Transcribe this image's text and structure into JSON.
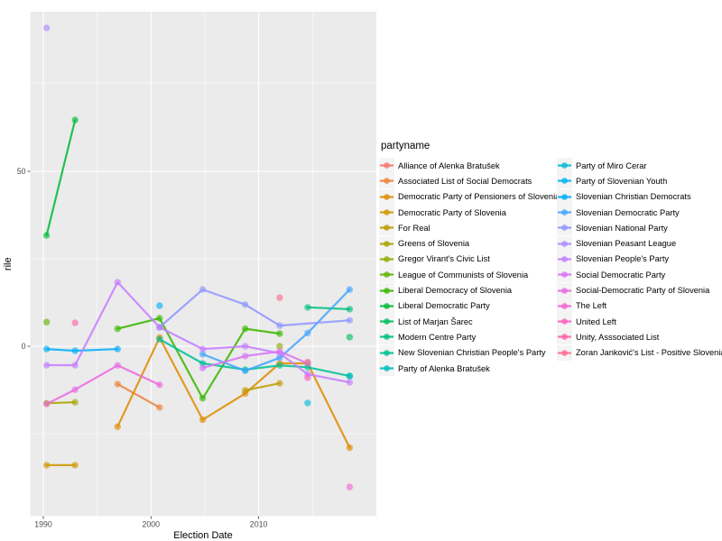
{
  "legend": {
    "title": "partyname"
  },
  "axes": {
    "x_title": "Election Date",
    "y_title": "rile",
    "x_tick_labels": [
      "1990",
      "2000",
      "2010"
    ],
    "y_tick_labels": [
      "0",
      "50"
    ]
  },
  "chart_data": {
    "type": "line",
    "title": "",
    "xlabel": "Election Date",
    "ylabel": "rile",
    "x_tick_labels": [
      "1990",
      "2000",
      "2010"
    ],
    "y_tick_labels": [
      "0",
      "50"
    ],
    "xlim": [
      1988.8,
      2020.9
    ],
    "ylim": [
      -48,
      95
    ],
    "grid": true,
    "legend_position": "right",
    "legend_title": "partyname",
    "panel_background": "#EBEBEB",
    "gridline_color": "#FFFFFF",
    "year_x_positions": {
      "1990": 1990.3,
      "1992": 1992.95,
      "1996": 1996.9,
      "2000": 2000.8,
      "2004": 2004.8,
      "2008": 2008.75,
      "2011": 2011.95,
      "2014": 2014.55,
      "2018": 2018.45
    },
    "series": [
      {
        "name": "Alliance of Alenka Bratušek",
        "color": "#F8766D",
        "points": [
          [
            2014,
            -4.5
          ]
        ]
      },
      {
        "name": "Associated List of Social Democrats",
        "color": "#EC8239",
        "points": [
          [
            1996,
            -10.8
          ],
          [
            2000,
            -17.5
          ]
        ]
      },
      {
        "name": "Democratic Party of Pensioners of Slovenia",
        "color": "#DE8C00",
        "points": [
          [
            1996,
            -23.0
          ],
          [
            2000,
            2.5
          ],
          [
            2004,
            -21.0
          ],
          [
            2008,
            -13.5
          ],
          [
            2011,
            -4.9
          ],
          [
            2014,
            -4.9
          ],
          [
            2018,
            -29.0
          ]
        ]
      },
      {
        "name": "Democratic Party of Slovenia",
        "color": "#D09400",
        "points": [
          [
            1990,
            -34.0
          ],
          [
            1992,
            -34.0
          ]
        ]
      },
      {
        "name": "For Real",
        "color": "#BE9C00",
        "points": [
          [
            2008,
            -12.6
          ],
          [
            2011,
            -10.6
          ]
        ]
      },
      {
        "name": "Greens of Slovenia",
        "color": "#A7A400",
        "points": [
          [
            1990,
            -16.3
          ],
          [
            1992,
            -16.0
          ]
        ]
      },
      {
        "name": "Gregor Virant's Civic List",
        "color": "#8CAD00",
        "points": [
          [
            2011,
            0.0
          ]
        ]
      },
      {
        "name": "League of Communists of Slovenia",
        "color": "#64B200",
        "points": [
          [
            1990,
            6.9
          ]
        ]
      },
      {
        "name": "Liberal Democracy of Slovenia",
        "color": "#39B600",
        "points": [
          [
            1996,
            5.0
          ],
          [
            2000,
            8.0
          ],
          [
            2004,
            -14.9
          ],
          [
            2008,
            5.0
          ],
          [
            2011,
            3.6
          ]
        ]
      },
      {
        "name": "Liberal Democratic Party",
        "color": "#00BA38",
        "points": [
          [
            1990,
            31.7
          ],
          [
            1992,
            64.7
          ]
        ]
      },
      {
        "name": "List of Marjan Šarec",
        "color": "#00BC5C",
        "points": [
          [
            2018,
            2.6
          ]
        ]
      },
      {
        "name": "Modern Centre Party",
        "color": "#00BF7C",
        "points": [
          [
            2014,
            11.1
          ],
          [
            2018,
            10.6
          ]
        ]
      },
      {
        "name": "New Slovenian Christian People's Party",
        "color": "#00C098",
        "points": [
          [
            2000,
            2.0
          ],
          [
            2004,
            -4.9
          ],
          [
            2008,
            -6.7
          ],
          [
            2011,
            -5.5
          ],
          [
            2014,
            -6.0
          ],
          [
            2018,
            -8.5
          ]
        ]
      },
      {
        "name": "Party of Alenka Bratušek",
        "color": "#00BFC0",
        "points": [
          [
            2018,
            -8.5
          ]
        ]
      },
      {
        "name": "Party of Miro Cerar",
        "color": "#00BBDA",
        "points": [
          [
            2014,
            -16.2
          ]
        ]
      },
      {
        "name": "Party of Slovenian Youth",
        "color": "#00B3F0",
        "points": [
          [
            2000,
            11.6
          ]
        ]
      },
      {
        "name": "Slovenian Christian Democrats",
        "color": "#00AEF8",
        "points": [
          [
            1990,
            -0.8
          ],
          [
            1992,
            -1.3
          ],
          [
            1996,
            -0.8
          ]
        ]
      },
      {
        "name": "Slovenian Democratic Party",
        "color": "#42A4FF",
        "points": [
          [
            2004,
            -2.3
          ],
          [
            2008,
            -7.0
          ],
          [
            2011,
            -3.3
          ],
          [
            2014,
            3.8
          ],
          [
            2018,
            16.2
          ]
        ]
      },
      {
        "name": "Slovenian National Party",
        "color": "#8F95FF",
        "points": [
          [
            2000,
            5.4
          ],
          [
            2004,
            16.2
          ],
          [
            2008,
            11.9
          ],
          [
            2011,
            5.9
          ],
          [
            2018,
            7.4
          ]
        ]
      },
      {
        "name": "Slovenian Peasant League",
        "color": "#AE89FF",
        "points": [
          [
            1990,
            91.0
          ]
        ]
      },
      {
        "name": "Slovenian People's Party",
        "color": "#C57DFF",
        "points": [
          [
            1990,
            -5.4
          ],
          [
            1992,
            -5.4
          ],
          [
            1996,
            18.3
          ],
          [
            2000,
            5.4
          ],
          [
            2004,
            -0.8
          ],
          [
            2008,
            0.0
          ],
          [
            2011,
            -2.0
          ],
          [
            2014,
            -8.0
          ],
          [
            2018,
            -10.3
          ]
        ]
      },
      {
        "name": "Social Democratic Party",
        "color": "#DA72F5",
        "points": [
          [
            2004,
            -6.2
          ],
          [
            2008,
            -2.8
          ],
          [
            2011,
            -1.5
          ],
          [
            2014,
            -4.9
          ]
        ]
      },
      {
        "name": "Social-Democratic Party of Slovenia",
        "color": "#EA69E1",
        "points": [
          [
            1990,
            -16.5
          ],
          [
            1992,
            -12.4
          ],
          [
            1996,
            -5.5
          ],
          [
            2000,
            -11.0
          ]
        ]
      },
      {
        "name": "The Left",
        "color": "#F564D0",
        "points": [
          [
            2018,
            -40.2
          ]
        ]
      },
      {
        "name": "United Left",
        "color": "#FC61BC",
        "points": [
          [
            2014,
            -9.0
          ]
        ]
      },
      {
        "name": "Unity, Asssociated List",
        "color": "#FF62A8",
        "points": [
          [
            1992,
            6.7
          ]
        ]
      },
      {
        "name": "Zoran Janković's List - Positive Slovenia",
        "color": "#FF6B92",
        "points": [
          [
            2011,
            13.9
          ]
        ]
      }
    ]
  }
}
